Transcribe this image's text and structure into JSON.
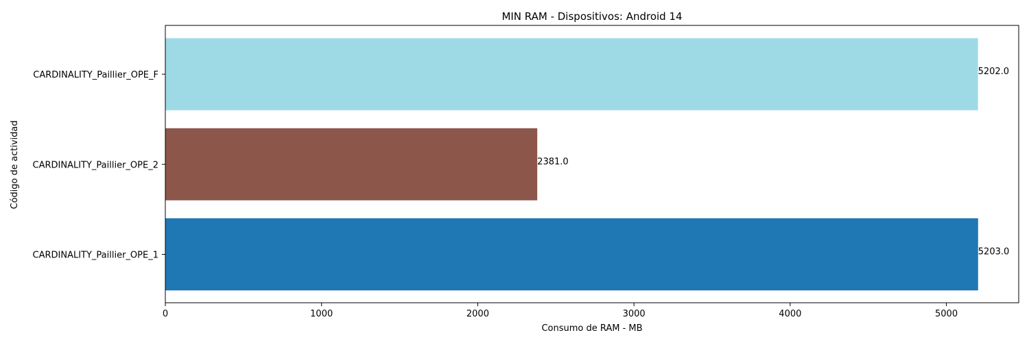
{
  "chart_data": {
    "type": "bar",
    "orientation": "horizontal",
    "title": "MIN RAM - Dispositivos: Android 14",
    "xlabel": "Consumo de RAM - MB",
    "ylabel": "Código de actividad",
    "categories": [
      "CARDINALITY_Paillier_OPE_1",
      "CARDINALITY_Paillier_OPE_2",
      "CARDINALITY_Paillier_OPE_F"
    ],
    "values": [
      5203.0,
      2381.0,
      5202.0
    ],
    "value_labels": [
      "5203.0",
      "2381.0",
      "5202.0"
    ],
    "bar_colors": [
      "#1f77b4",
      "#8c564b",
      "#9edae5"
    ],
    "xlim": [
      0,
      5463
    ],
    "xticks": [
      0,
      1000,
      2000,
      3000,
      4000,
      5000
    ],
    "xtick_labels": [
      "0",
      "1000",
      "2000",
      "3000",
      "4000",
      "5000"
    ],
    "grid": false,
    "legend": "none"
  }
}
